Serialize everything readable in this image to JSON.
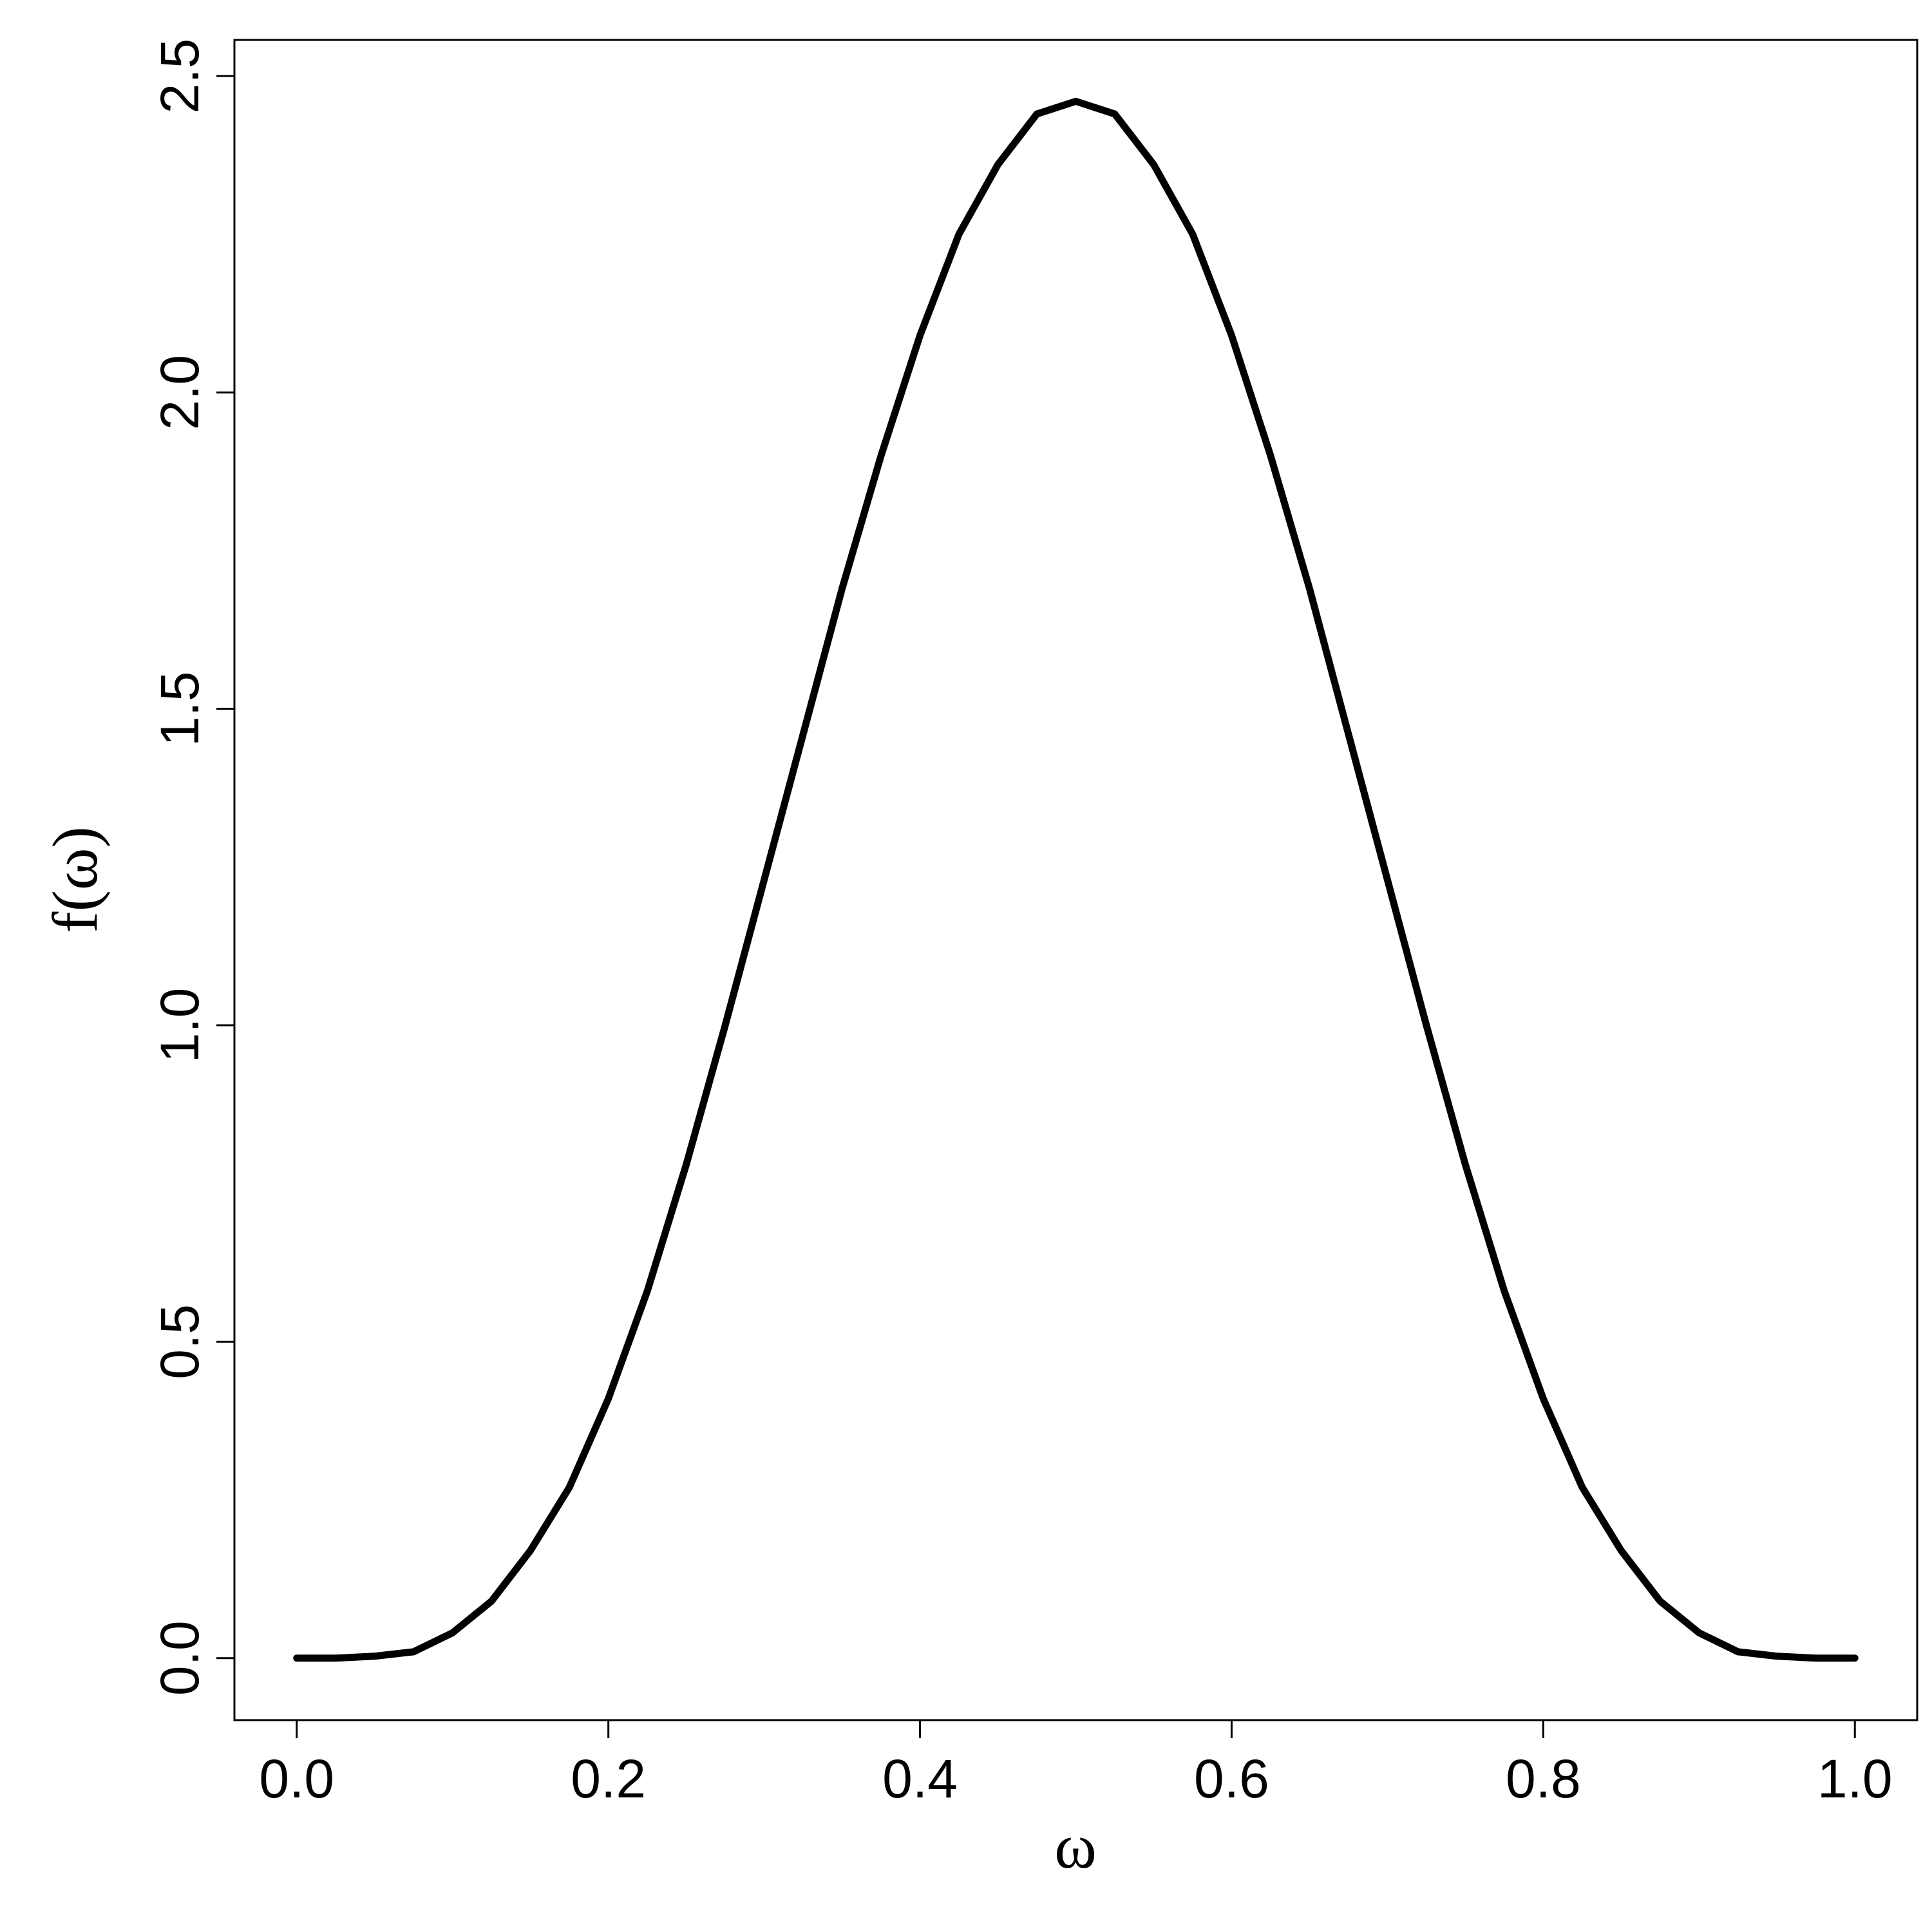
{
  "chart_data": {
    "type": "line",
    "xlabel": "ω",
    "ylabel": "f(ω)",
    "x": [
      0,
      0.025,
      0.05,
      0.075,
      0.1,
      0.125,
      0.15,
      0.175,
      0.2,
      0.225,
      0.25,
      0.275,
      0.3,
      0.325,
      0.35,
      0.375,
      0.4,
      0.425,
      0.45,
      0.475,
      0.5,
      0.525,
      0.55,
      0.575,
      0.6,
      0.625,
      0.65,
      0.675,
      0.7,
      0.725,
      0.75,
      0.775,
      0.8,
      0.825,
      0.85,
      0.875,
      0.9,
      0.925,
      0.95,
      0.975,
      1
    ],
    "series": [
      {
        "color": "#000000",
        "values": [
          0,
          0,
          0.003,
          0.01,
          0.04,
          0.09,
          0.17,
          0.27,
          0.41,
          0.58,
          0.78,
          1.0,
          1.23,
          1.46,
          1.69,
          1.9,
          2.09,
          2.25,
          2.36,
          2.44,
          2.46,
          2.44,
          2.36,
          2.25,
          2.09,
          1.9,
          1.69,
          1.46,
          1.23,
          1.0,
          0.78,
          0.58,
          0.41,
          0.27,
          0.17,
          0.09,
          0.04,
          0.01,
          0.003,
          0,
          0
        ]
      }
    ],
    "xlim": [
      -0.04,
      1.04
    ],
    "ylim": [
      -0.098,
      2.557
    ],
    "xticks": [
      {
        "value": 0,
        "label": "0.0"
      },
      0.2,
      0.4,
      0.6,
      0.8,
      {
        "value": 1,
        "label": "1.0"
      }
    ],
    "yticks": [
      {
        "value": 0,
        "label": "0.0"
      },
      0.5,
      {
        "value": 1,
        "label": "1.0"
      },
      1.5,
      {
        "value": 2,
        "label": "2.0"
      },
      2.5
    ]
  }
}
